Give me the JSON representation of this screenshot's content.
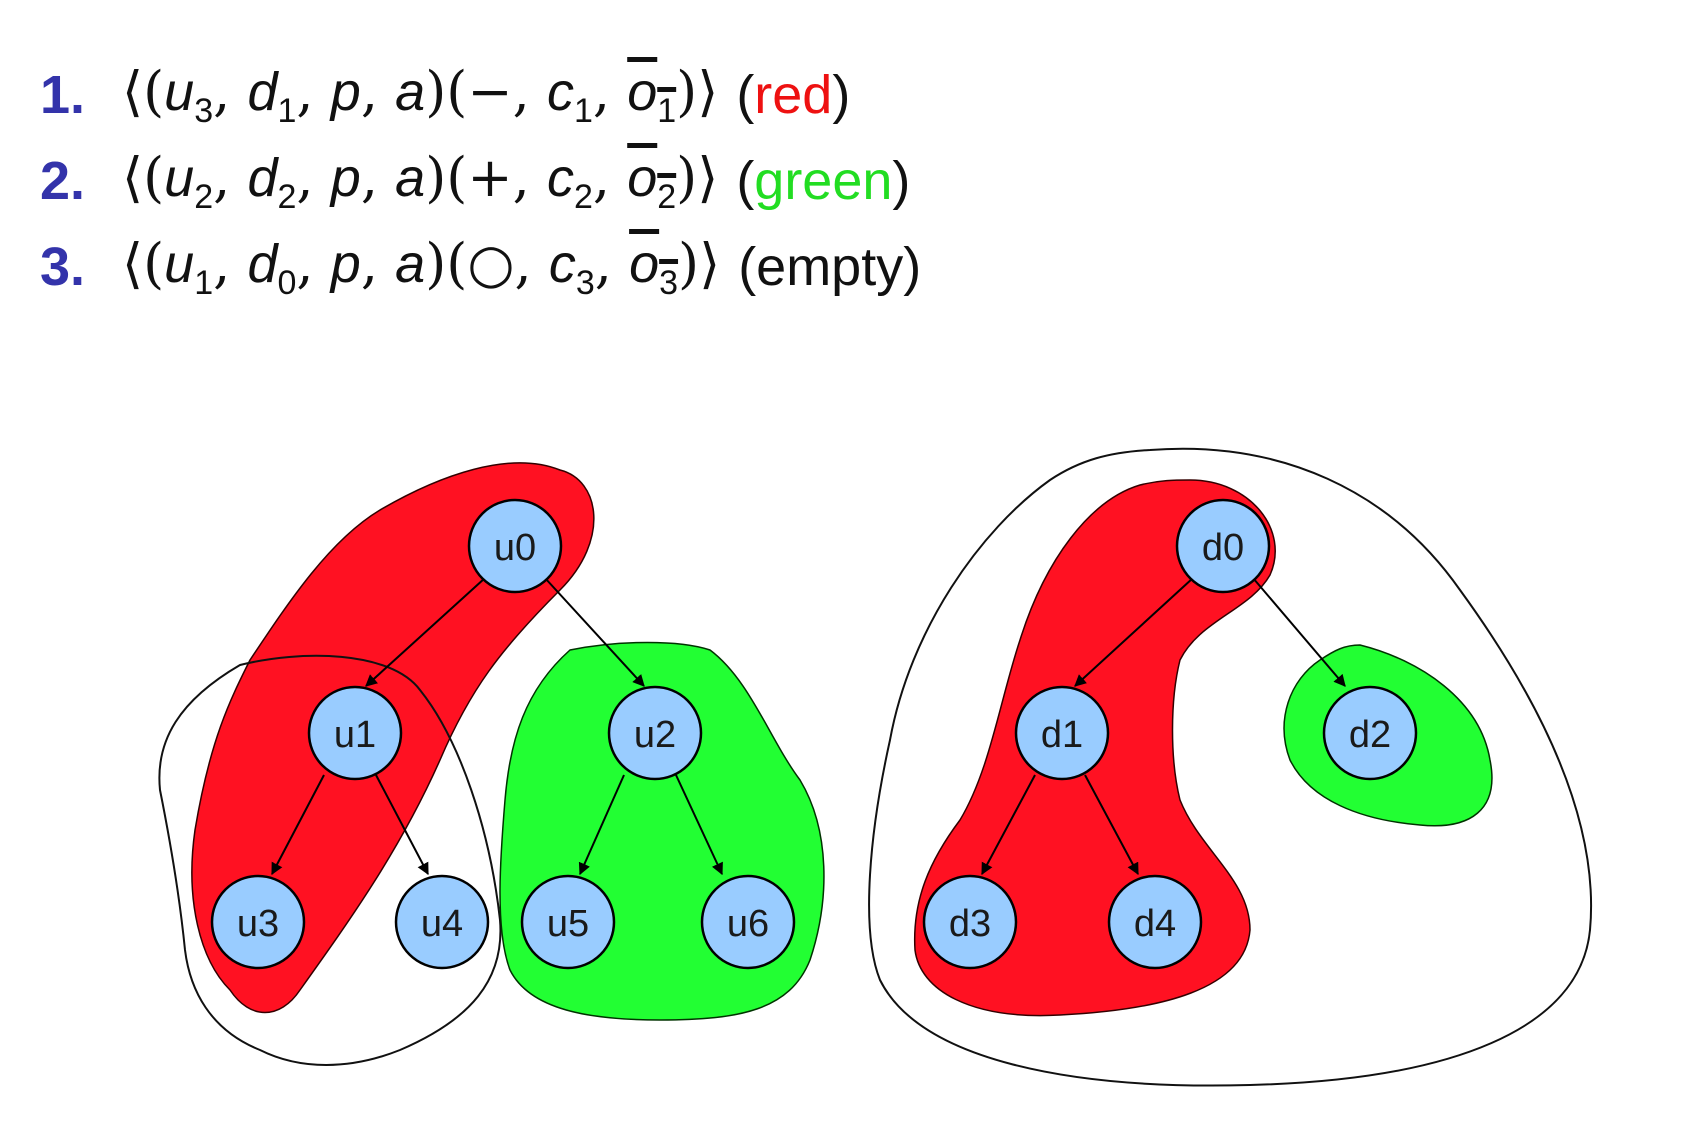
{
  "rules": [
    {
      "number": "1.",
      "signal": "−",
      "u_sub": "3",
      "d_sub": "1",
      "c_sub": "1",
      "o_sub": "1",
      "color_word": "red",
      "color_hex": "#ee1111"
    },
    {
      "number": "2.",
      "signal": "+",
      "u_sub": "2",
      "d_sub": "2",
      "c_sub": "2",
      "o_sub": "2",
      "color_word": "green",
      "color_hex": "#22dd22"
    },
    {
      "number": "3.",
      "signal": "○",
      "u_sub": "1",
      "d_sub": "0",
      "c_sub": "3",
      "o_sub": "3",
      "color_word": "empty",
      "color_hex": "#111111"
    }
  ],
  "symbols": {
    "u": "u",
    "d": "d",
    "p": "p",
    "a": "a",
    "c": "c",
    "o": "o"
  },
  "colors": {
    "node_fill": "#99ccff",
    "red_region": "#ff1122",
    "green_region": "#22ff33",
    "rule_number": "#3333aa"
  },
  "user_tree": {
    "nodes": [
      "u0",
      "u1",
      "u2",
      "u3",
      "u4",
      "u5",
      "u6"
    ],
    "edges": [
      [
        "u0",
        "u1"
      ],
      [
        "u0",
        "u2"
      ],
      [
        "u1",
        "u3"
      ],
      [
        "u1",
        "u4"
      ],
      [
        "u2",
        "u5"
      ],
      [
        "u2",
        "u6"
      ]
    ]
  },
  "data_tree": {
    "nodes": [
      "d0",
      "d1",
      "d2",
      "d3",
      "d4"
    ],
    "edges": [
      [
        "d0",
        "d1"
      ],
      [
        "d0",
        "d2"
      ],
      [
        "d1",
        "d3"
      ],
      [
        "d1",
        "d4"
      ]
    ]
  }
}
